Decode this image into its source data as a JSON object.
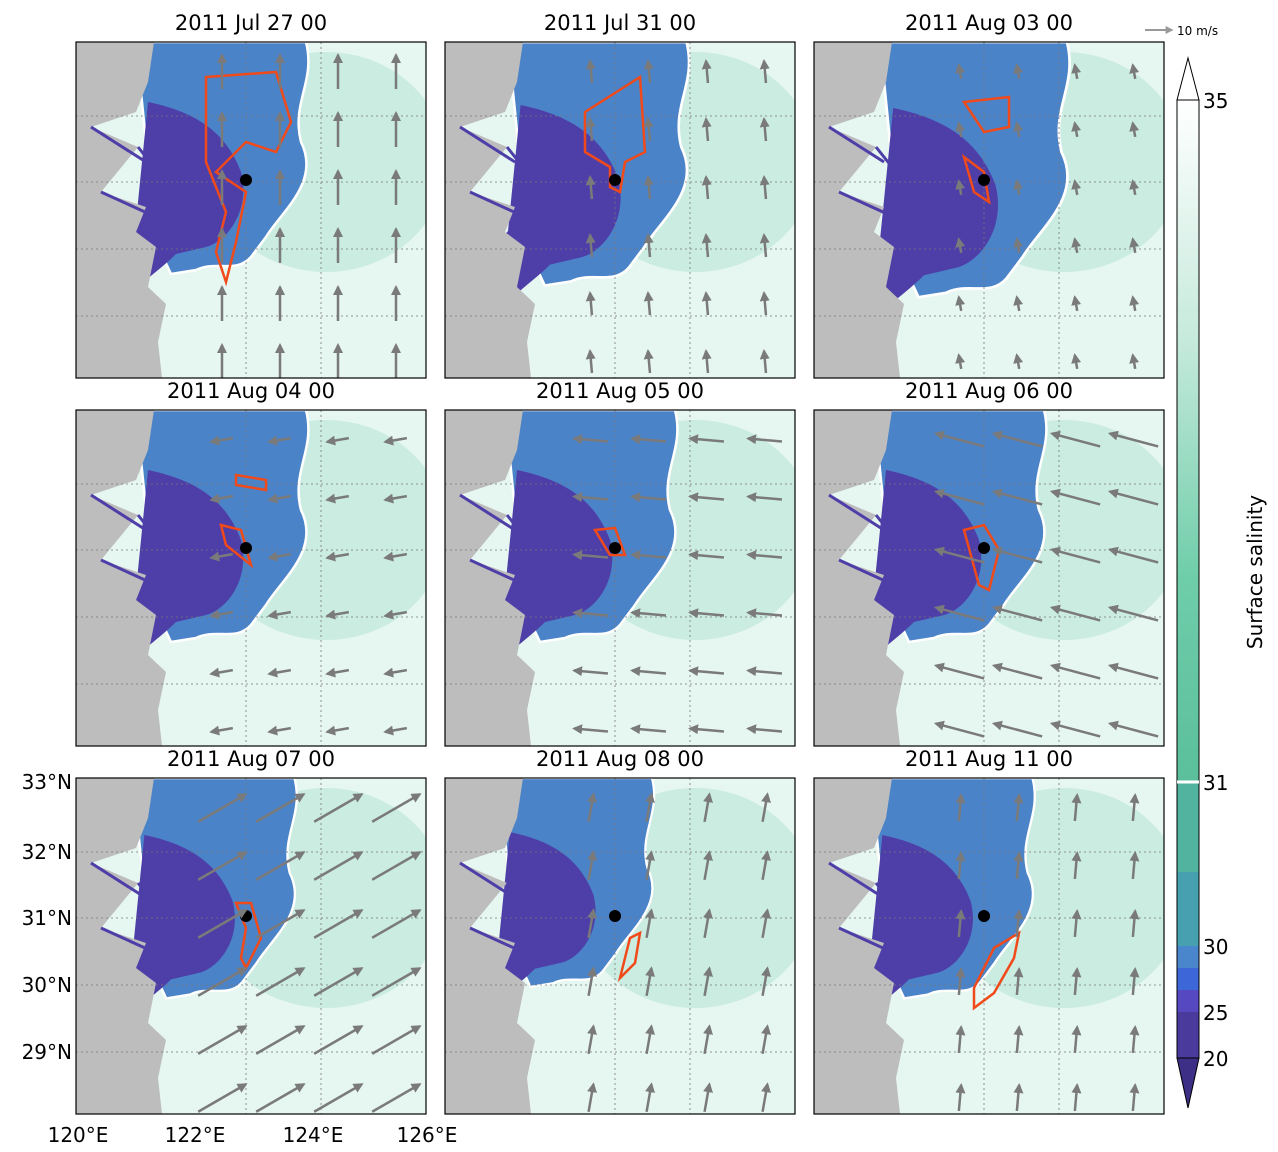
{
  "panels": [
    {
      "title": "2011 Jul 27 00"
    },
    {
      "title": "2011 Jul 31 00"
    },
    {
      "title": "2011 Aug 03 00"
    },
    {
      "title": "2011 Aug 04 00"
    },
    {
      "title": "2011 Aug 05 00"
    },
    {
      "title": "2011 Aug 06 00"
    },
    {
      "title": "2011 Aug 07 00"
    },
    {
      "title": "2011 Aug 08 00"
    },
    {
      "title": "2011 Aug 11 00"
    }
  ],
  "axes": {
    "lat_labels": [
      "33°N",
      "32°N",
      "31°N",
      "30°N",
      "29°N"
    ],
    "lon_labels": [
      "120°E",
      "122°E",
      "124°E",
      "126°E"
    ]
  },
  "colorbar": {
    "label": "Surface salinity",
    "ticks": [
      35,
      31,
      30,
      25,
      20
    ]
  },
  "vector_key": "10 m/s"
}
